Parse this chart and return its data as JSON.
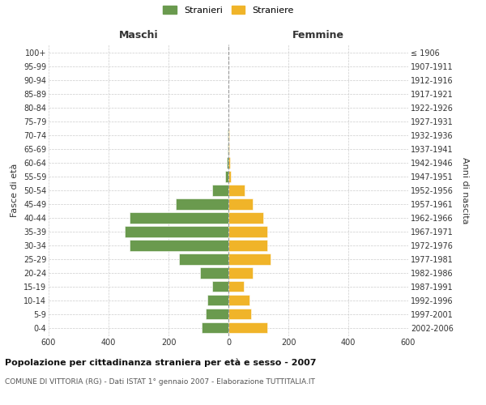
{
  "age_groups": [
    "0-4",
    "5-9",
    "10-14",
    "15-19",
    "20-24",
    "25-29",
    "30-34",
    "35-39",
    "40-44",
    "45-49",
    "50-54",
    "55-59",
    "60-64",
    "65-69",
    "70-74",
    "75-79",
    "80-84",
    "85-89",
    "90-94",
    "95-99",
    "100+"
  ],
  "birth_years": [
    "2002-2006",
    "1997-2001",
    "1992-1996",
    "1987-1991",
    "1982-1986",
    "1977-1981",
    "1972-1976",
    "1967-1971",
    "1962-1966",
    "1957-1961",
    "1952-1956",
    "1947-1951",
    "1942-1946",
    "1937-1941",
    "1932-1936",
    "1927-1931",
    "1922-1926",
    "1917-1921",
    "1912-1916",
    "1907-1911",
    "≤ 1906"
  ],
  "maschi": [
    90,
    75,
    70,
    55,
    95,
    165,
    330,
    345,
    330,
    175,
    55,
    10,
    5,
    2,
    3,
    0,
    0,
    0,
    0,
    0,
    0
  ],
  "femmine": [
    130,
    75,
    70,
    50,
    80,
    140,
    130,
    130,
    115,
    80,
    55,
    8,
    5,
    3,
    2,
    0,
    0,
    0,
    0,
    0,
    0
  ],
  "color_maschi": "#6a9a4e",
  "color_femmine": "#f0b429",
  "xlim": 600,
  "xlabel_left": "Maschi",
  "xlabel_right": "Femmine",
  "ylabel_left": "Fasce di età",
  "ylabel_right": "Anni di nascita",
  "title": "Popolazione per cittadinanza straniera per età e sesso - 2007",
  "subtitle": "COMUNE DI VITTORIA (RG) - Dati ISTAT 1° gennaio 2007 - Elaborazione TUTTITALIA.IT",
  "legend_maschi": "Stranieri",
  "legend_femmine": "Straniere",
  "bg_color": "#ffffff",
  "grid_color": "#cccccc"
}
